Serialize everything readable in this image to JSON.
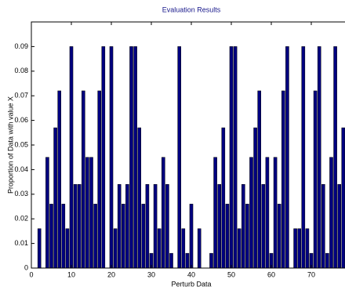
{
  "chart_data": {
    "type": "bar",
    "title": "Evaluation Results",
    "x_label": "Perturb Data",
    "y_label": "Proportion of Data with value X",
    "x": [
      1,
      2,
      3,
      4,
      5,
      6,
      7,
      8,
      9,
      10,
      11,
      12,
      13,
      14,
      15,
      16,
      17,
      18,
      19,
      20,
      21,
      22,
      23,
      24,
      25,
      26,
      27,
      28,
      29,
      30,
      31,
      32,
      33,
      34,
      35,
      36,
      37,
      38,
      39,
      40,
      41,
      42,
      43,
      44,
      45,
      46,
      47,
      48,
      49,
      50,
      51,
      52,
      53,
      54,
      55,
      56,
      57,
      58,
      59,
      60,
      61,
      62,
      63,
      64,
      65,
      66,
      67,
      68,
      69,
      70,
      71,
      72,
      73,
      74,
      75,
      76,
      77,
      78,
      79,
      80
    ],
    "values": [
      0,
      0.016,
      0,
      0.045,
      0.026,
      0.057,
      0.072,
      0.026,
      0.016,
      0.09,
      0.034,
      0.034,
      0.072,
      0.045,
      0.045,
      0.026,
      0.072,
      0.09,
      0,
      0.09,
      0.016,
      0.034,
      0.026,
      0.034,
      0.09,
      0.09,
      0.057,
      0.026,
      0.034,
      0.006,
      0.034,
      0.016,
      0.045,
      0.034,
      0.006,
      0,
      0.09,
      0.016,
      0.006,
      0.026,
      0,
      0.016,
      0,
      0,
      0.006,
      0.045,
      0.034,
      0.057,
      0.026,
      0.09,
      0.09,
      0.016,
      0.034,
      0.026,
      0.045,
      0.057,
      0.072,
      0.034,
      0.045,
      0.006,
      0.045,
      0.026,
      0.072,
      0.09,
      0,
      0.016,
      0.016,
      0.09,
      0.016,
      0.006,
      0.072,
      0.09,
      0.034,
      0.006,
      0.045,
      0.09,
      0.034,
      0.057,
      0.016,
      0.034
    ],
    "color": "#000080",
    "xlim": [
      0,
      80
    ],
    "xticks": [
      0,
      10,
      20,
      30,
      40,
      50,
      60,
      70,
      80
    ],
    "ylim": [
      0,
      0.1
    ],
    "yticks": [
      0,
      0.01,
      0.02,
      0.03,
      0.04,
      0.05,
      0.06,
      0.07,
      0.08,
      0.09
    ],
    "grid": false
  }
}
